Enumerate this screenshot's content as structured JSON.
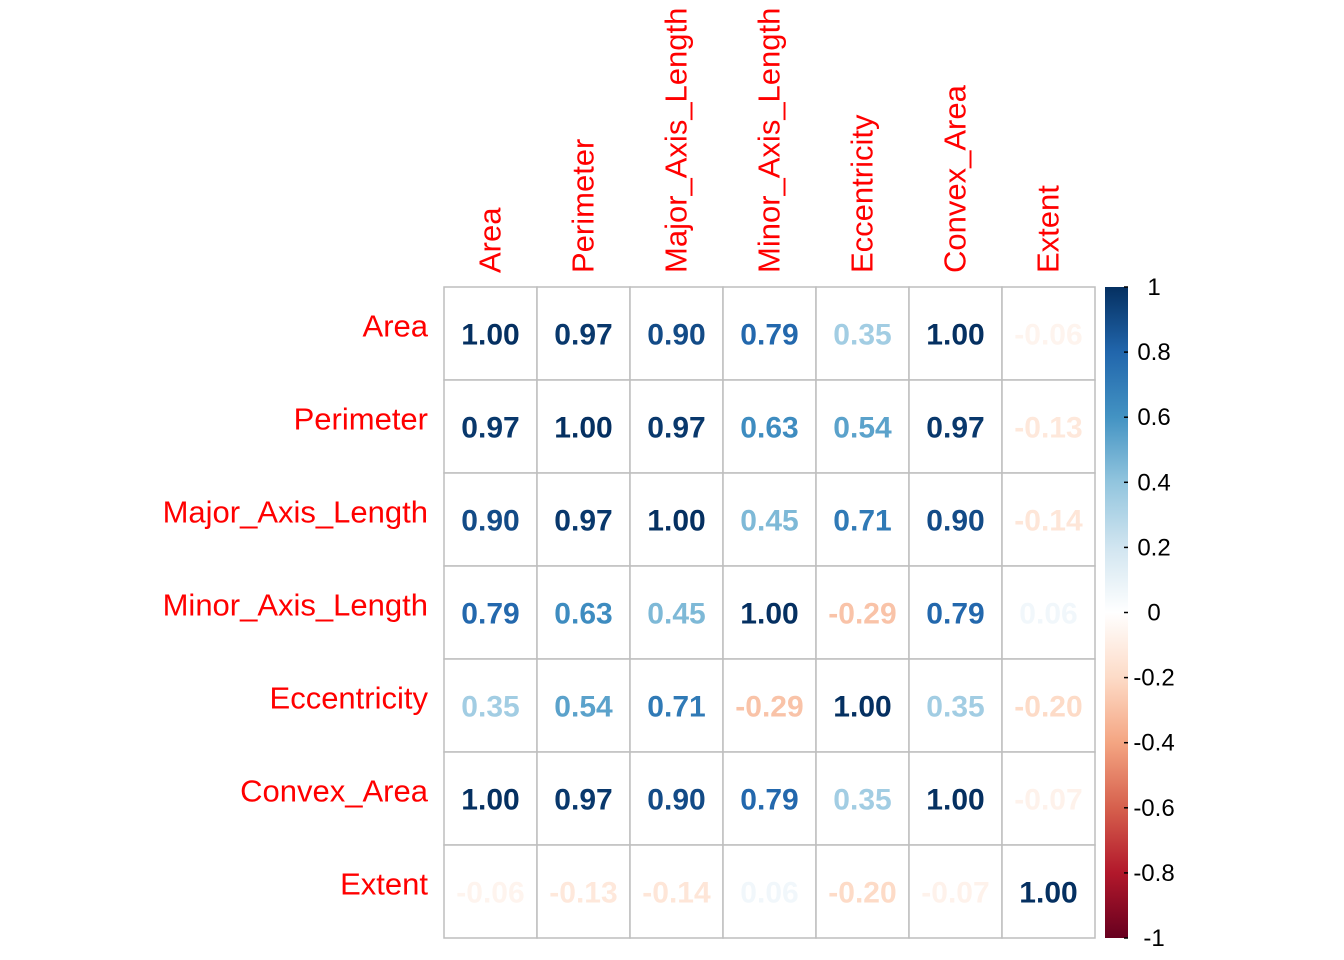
{
  "chart_data": {
    "type": "heatmap",
    "variables": [
      "Area",
      "Perimeter",
      "Major_Axis_Length",
      "Minor_Axis_Length",
      "Eccentricity",
      "Convex_Area",
      "Extent"
    ],
    "matrix": [
      [
        1.0,
        0.97,
        0.9,
        0.79,
        0.35,
        1.0,
        -0.06
      ],
      [
        0.97,
        1.0,
        0.97,
        0.63,
        0.54,
        0.97,
        -0.13
      ],
      [
        0.9,
        0.97,
        1.0,
        0.45,
        0.71,
        0.9,
        -0.14
      ],
      [
        0.79,
        0.63,
        0.45,
        1.0,
        -0.29,
        0.79,
        0.06
      ],
      [
        0.35,
        0.54,
        0.71,
        -0.29,
        1.0,
        0.35,
        -0.2
      ],
      [
        1.0,
        0.97,
        0.9,
        0.79,
        0.35,
        1.0,
        -0.07
      ],
      [
        -0.06,
        -0.13,
        -0.14,
        0.06,
        -0.2,
        -0.07,
        1.0
      ]
    ],
    "value_format": "2 decimals",
    "color_scale": {
      "range": [
        -1,
        1
      ],
      "colors": [
        "#67001f",
        "#b2182b",
        "#d6604d",
        "#f4a582",
        "#fddbc7",
        "#ffffff",
        "#d1e5f0",
        "#92c5de",
        "#4393c3",
        "#2166ac",
        "#053061"
      ]
    },
    "colorbar_ticks": [
      "1",
      "0.8",
      "0.6",
      "0.4",
      "0.2",
      "0",
      "-0.2",
      "-0.4",
      "-0.6",
      "-0.8",
      "-1"
    ],
    "label_color": "#ff0000",
    "grid_color": "#bebebe",
    "legend_position": "right",
    "title": ""
  }
}
